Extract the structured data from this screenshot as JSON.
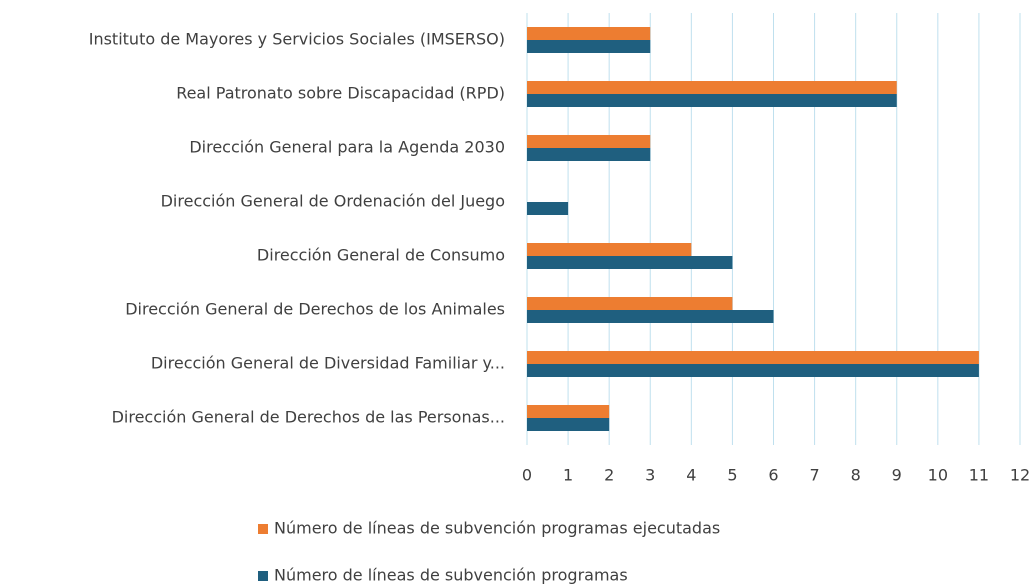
{
  "chart_data": {
    "type": "bar",
    "orientation": "horizontal",
    "categories": [
      "Instituto de Mayores y Servicios Sociales (IMSERSO)",
      "Real Patronato sobre Discapacidad (RPD)",
      "Dirección General para la Agenda 2030",
      "Dirección General de Ordenación del Juego",
      "Dirección General de Consumo",
      "Dirección General de Derechos de los Animales",
      "Dirección General de Diversidad Familiar y...",
      "Dirección General de Derechos de las Personas..."
    ],
    "series": [
      {
        "name": "Número de líneas de subvención programas ejecutadas",
        "color": "#ed7d31",
        "values": [
          3,
          9,
          3,
          0,
          4,
          5,
          11,
          2
        ]
      },
      {
        "name": "Número de líneas de subvención programas",
        "color": "#1f5f7f",
        "values": [
          3,
          9,
          3,
          1,
          5,
          6,
          11,
          2
        ]
      }
    ],
    "xlim": [
      0,
      12
    ],
    "xticks": [
      0,
      1,
      2,
      3,
      4,
      5,
      6,
      7,
      8,
      9,
      10,
      11,
      12
    ],
    "grid": true,
    "grid_color": "#bfe0ee",
    "legend": "bottom"
  }
}
